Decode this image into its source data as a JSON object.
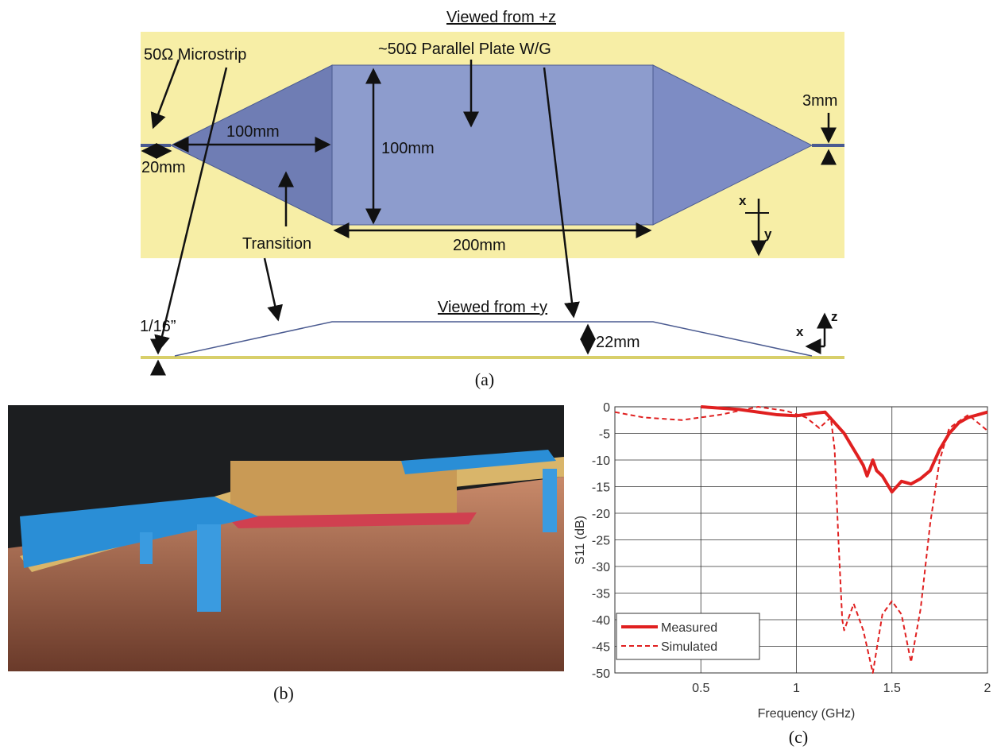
{
  "figure_a": {
    "caption": "(a)",
    "view_top": "Viewed from +z",
    "view_side": "Viewed from +y",
    "labels": [
      "50Ω Microstrip",
      "~50Ω Parallel Plate W/G",
      "100mm",
      "100mm",
      "20mm",
      "3mm",
      "Transition",
      "200mm",
      "1/16”",
      "22mm"
    ],
    "axes_top": [
      "x",
      "y"
    ],
    "axes_side": [
      "x",
      "z"
    ]
  },
  "figure_b": {
    "caption": "(b)"
  },
  "chart_data": {
    "type": "line",
    "caption": "(c)",
    "xlabel": "Frequency (GHz)",
    "ylabel": "S11 (dB)",
    "xlim": [
      0.05,
      2
    ],
    "ylim": [
      -50,
      0
    ],
    "xticks": [
      0.5,
      1,
      1.5,
      2
    ],
    "yticks": [
      0,
      -5,
      -10,
      -15,
      -20,
      -25,
      -30,
      -35,
      -40,
      -45,
      -50
    ],
    "grid": true,
    "legend": "lower-left",
    "series": [
      {
        "name": "Measured",
        "color": "#e02020",
        "style": "solid",
        "x": [
          0.5,
          0.7,
          0.9,
          1.0,
          1.1,
          1.15,
          1.2,
          1.25,
          1.3,
          1.35,
          1.37,
          1.4,
          1.42,
          1.45,
          1.5,
          1.55,
          1.6,
          1.65,
          1.7,
          1.75,
          1.8,
          1.85,
          1.9,
          2.0
        ],
        "values": [
          0,
          -0.5,
          -1.5,
          -1.7,
          -1.2,
          -1,
          -3,
          -5,
          -8,
          -11,
          -13,
          -10,
          -12,
          -13,
          -16,
          -14,
          -14.5,
          -13.5,
          -12,
          -8,
          -5,
          -3,
          -2,
          -1
        ]
      },
      {
        "name": "Simulated",
        "color": "#e02020",
        "style": "dashed",
        "x": [
          0.05,
          0.2,
          0.4,
          0.6,
          0.8,
          0.95,
          1.05,
          1.12,
          1.18,
          1.2,
          1.22,
          1.24,
          1.25,
          1.3,
          1.35,
          1.4,
          1.45,
          1.5,
          1.55,
          1.6,
          1.65,
          1.7,
          1.75,
          1.8,
          1.9,
          2.0
        ],
        "values": [
          -1,
          -2,
          -2.5,
          -1.5,
          0,
          -0.8,
          -2,
          -4,
          -2,
          -8,
          -25,
          -40,
          -42,
          -37,
          -42,
          -50,
          -39,
          -36.5,
          -39,
          -48,
          -38,
          -22,
          -10,
          -4,
          -1.5,
          -4.5
        ]
      }
    ]
  }
}
